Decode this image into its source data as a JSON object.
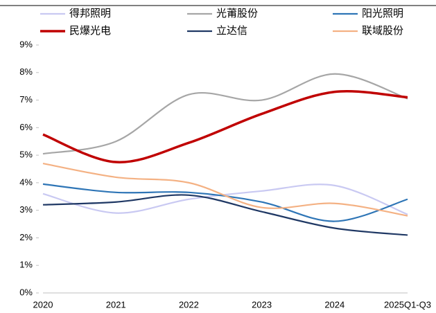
{
  "chart_data": {
    "type": "line",
    "categories": [
      "2020",
      "2021",
      "2022",
      "2023",
      "2024",
      "2025Q1-Q3"
    ],
    "series": [
      {
        "name": "得邦照明",
        "color": "#c9c9f2",
        "values": [
          3.6,
          2.9,
          3.4,
          3.7,
          3.9,
          2.85
        ]
      },
      {
        "name": "光莆股份",
        "color": "#a6a6a6",
        "values": [
          5.05,
          5.5,
          7.2,
          7.0,
          7.95,
          7.05
        ]
      },
      {
        "name": "阳光照明",
        "color": "#2e75b6",
        "values": [
          3.95,
          3.65,
          3.65,
          3.3,
          2.6,
          3.4
        ]
      },
      {
        "name": "民爆光电",
        "color": "#c00000",
        "values": [
          5.75,
          4.75,
          5.45,
          6.5,
          7.3,
          7.1
        ]
      },
      {
        "name": "立达信",
        "color": "#1f3864",
        "values": [
          3.2,
          3.3,
          3.55,
          2.95,
          2.35,
          2.1
        ]
      },
      {
        "name": "联域股份",
        "color": "#f4b183",
        "values": [
          4.7,
          4.2,
          4.0,
          3.1,
          3.25,
          2.8
        ]
      }
    ],
    "ylim": [
      0,
      9
    ],
    "yticks": [
      {
        "value": 0,
        "label": "0%"
      },
      {
        "value": 1,
        "label": "1%"
      },
      {
        "value": 2,
        "label": "2%"
      },
      {
        "value": 3,
        "label": "3%"
      },
      {
        "value": 4,
        "label": "4%"
      },
      {
        "value": 5,
        "label": "5%"
      },
      {
        "value": 6,
        "label": "6%"
      },
      {
        "value": 7,
        "label": "7%"
      },
      {
        "value": 8,
        "label": "8%"
      },
      {
        "value": 9,
        "label": "9%"
      }
    ],
    "legend": "top"
  }
}
